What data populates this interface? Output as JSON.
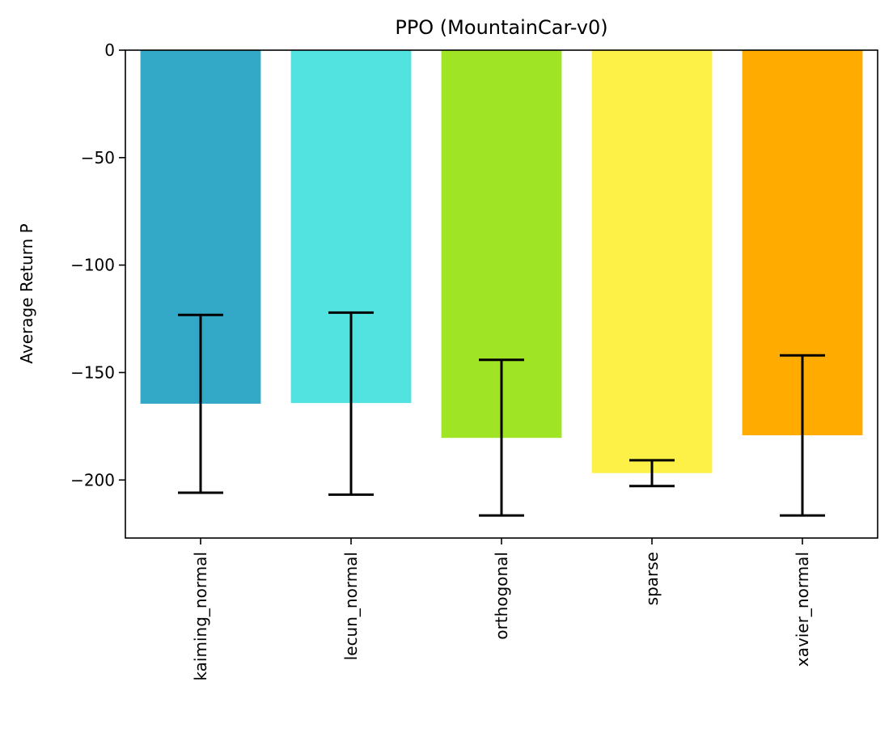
{
  "chart_data": {
    "type": "bar",
    "title": "PPO (MountainCar-v0)",
    "xlabel": "",
    "ylabel": "Average Return P",
    "categories": [
      "kaiming_normal",
      "lecun_normal",
      "orthogonal",
      "sparse",
      "xavier_normal"
    ],
    "values": [
      -164.5,
      -164.2,
      -180.4,
      -196.8,
      -179.2
    ],
    "error_low": [
      -205.9,
      -206.8,
      -216.5,
      -202.8,
      -216.5
    ],
    "error_high": [
      -123.2,
      -122.1,
      -144.1,
      -190.8,
      -142.0
    ],
    "colors": [
      "#33a8c7",
      "#52e3e1",
      "#a0e426",
      "#fdf148",
      "#ffab00"
    ],
    "ylim": [
      -227,
      0
    ],
    "yticks": [
      0,
      -50,
      -100,
      -150,
      -200
    ],
    "ytick_labels": [
      "0",
      "−50",
      "−100",
      "−150",
      "−200"
    ],
    "grid": false,
    "legend": "none"
  }
}
